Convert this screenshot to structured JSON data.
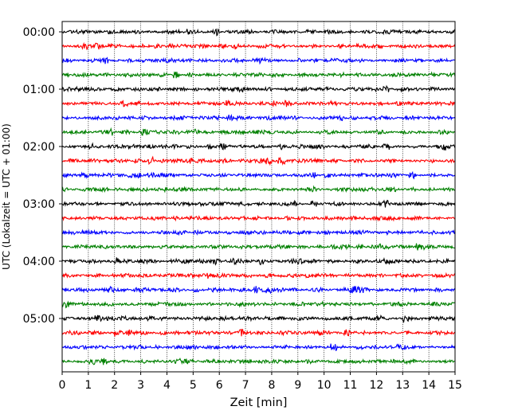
{
  "chart_data": {
    "type": "line",
    "title": "",
    "xlabel": "Zeit  [min]",
    "ylabel": "UTC (Lokalzeit = UTC + 01:00)",
    "xlim": [
      0,
      15
    ],
    "x_ticks": [
      "0",
      "1",
      "2",
      "3",
      "4",
      "5",
      "6",
      "7",
      "8",
      "9",
      "10",
      "11",
      "12",
      "13",
      "14",
      "15"
    ],
    "y_ticks": [
      "00:00",
      "01:00",
      "02:00",
      "03:00",
      "04:00",
      "05:00"
    ],
    "trace_colors": [
      "#000000",
      "#ff0000",
      "#0000ff",
      "#008000"
    ],
    "trace_minutes": 15,
    "trace_count": 24,
    "grid": "vertical dotted lines at each minute",
    "series": [
      {
        "start": "00:00"
      },
      {
        "start": "00:15"
      },
      {
        "start": "00:30"
      },
      {
        "start": "00:45"
      },
      {
        "start": "01:00"
      },
      {
        "start": "01:15"
      },
      {
        "start": "01:30"
      },
      {
        "start": "01:45"
      },
      {
        "start": "02:00"
      },
      {
        "start": "02:15"
      },
      {
        "start": "02:30"
      },
      {
        "start": "02:45"
      },
      {
        "start": "03:00"
      },
      {
        "start": "03:15"
      },
      {
        "start": "03:30"
      },
      {
        "start": "03:45"
      },
      {
        "start": "04:00"
      },
      {
        "start": "04:15"
      },
      {
        "start": "04:30"
      },
      {
        "start": "04:45"
      },
      {
        "start": "05:00"
      },
      {
        "start": "05:15"
      },
      {
        "start": "05:30"
      },
      {
        "start": "05:45"
      }
    ]
  }
}
